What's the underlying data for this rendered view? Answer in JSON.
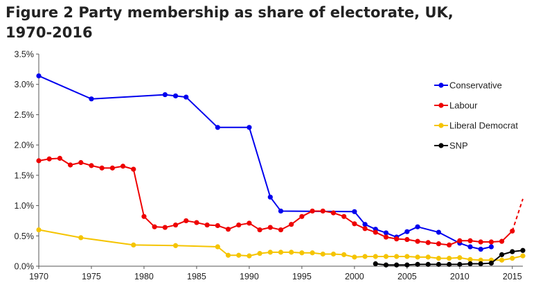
{
  "header": {
    "title_line1": "Figure 2 Party membership as share of electorate, UK,",
    "title_line2": "1970-2016"
  },
  "chart_data": {
    "type": "line",
    "title": "Figure 2 Party membership as share of electorate, UK, 1970-2016",
    "xlabel": "",
    "ylabel": "",
    "xlim": [
      1970,
      2016
    ],
    "ylim": [
      0,
      3.5
    ],
    "x_ticks": [
      1970,
      1975,
      1980,
      1985,
      1990,
      1995,
      2000,
      2005,
      2010,
      2015
    ],
    "y_ticks": [
      0,
      0.5,
      1.0,
      1.5,
      2.0,
      2.5,
      3.0,
      3.5
    ],
    "y_tick_labels": [
      "0.0%",
      "0.5%",
      "1.0%",
      "1.5%",
      "2.0%",
      "2.5%",
      "3.0%",
      "3.5%"
    ],
    "legend_position": "right",
    "grid": false,
    "series": [
      {
        "name": "Conservative",
        "color": "#0000ee",
        "points": [
          [
            1970,
            3.14
          ],
          [
            1975,
            2.76
          ],
          [
            1982,
            2.83
          ],
          [
            1983,
            2.81
          ],
          [
            1984,
            2.79
          ],
          [
            1987,
            2.29
          ],
          [
            1990,
            2.29
          ],
          [
            1992,
            1.14
          ],
          [
            1993,
            0.91
          ],
          [
            2000,
            0.9
          ],
          [
            2001,
            0.69
          ],
          [
            2002,
            0.61
          ],
          [
            2003,
            0.55
          ],
          [
            2004,
            0.48
          ],
          [
            2005,
            0.57
          ],
          [
            2006,
            0.65
          ],
          [
            2008,
            0.56
          ],
          [
            2010,
            0.38
          ],
          [
            2011,
            0.32
          ],
          [
            2012,
            0.28
          ],
          [
            2013,
            0.32
          ]
        ]
      },
      {
        "name": "Labour",
        "color": "#ee0000",
        "points": [
          [
            1970,
            1.74
          ],
          [
            1971,
            1.77
          ],
          [
            1972,
            1.78
          ],
          [
            1973,
            1.67
          ],
          [
            1974,
            1.71
          ],
          [
            1975,
            1.66
          ],
          [
            1976,
            1.62
          ],
          [
            1977,
            1.62
          ],
          [
            1978,
            1.65
          ],
          [
            1979,
            1.6
          ],
          [
            1980,
            0.82
          ],
          [
            1981,
            0.65
          ],
          [
            1982,
            0.64
          ],
          [
            1983,
            0.68
          ],
          [
            1984,
            0.75
          ],
          [
            1985,
            0.72
          ],
          [
            1986,
            0.68
          ],
          [
            1987,
            0.67
          ],
          [
            1988,
            0.61
          ],
          [
            1989,
            0.68
          ],
          [
            1990,
            0.71
          ],
          [
            1991,
            0.6
          ],
          [
            1992,
            0.64
          ],
          [
            1993,
            0.6
          ],
          [
            1994,
            0.69
          ],
          [
            1995,
            0.82
          ],
          [
            1996,
            0.91
          ],
          [
            1997,
            0.91
          ],
          [
            1998,
            0.88
          ],
          [
            1999,
            0.82
          ],
          [
            2000,
            0.7
          ],
          [
            2001,
            0.62
          ],
          [
            2002,
            0.56
          ],
          [
            2003,
            0.48
          ],
          [
            2004,
            0.45
          ],
          [
            2005,
            0.44
          ],
          [
            2006,
            0.41
          ],
          [
            2007,
            0.39
          ],
          [
            2008,
            0.37
          ],
          [
            2009,
            0.35
          ],
          [
            2010,
            0.42
          ],
          [
            2011,
            0.42
          ],
          [
            2012,
            0.4
          ],
          [
            2013,
            0.4
          ],
          [
            2014,
            0.41
          ],
          [
            2015,
            0.58
          ]
        ],
        "dashed_extension": [
          [
            2015,
            0.58
          ],
          [
            2016,
            1.11
          ]
        ]
      },
      {
        "name": "Liberal Democrat",
        "color": "#f5c400",
        "points": [
          [
            1970,
            0.6
          ],
          [
            1974,
            0.47
          ],
          [
            1979,
            0.35
          ],
          [
            1983,
            0.34
          ],
          [
            1987,
            0.32
          ],
          [
            1988,
            0.18
          ],
          [
            1989,
            0.18
          ],
          [
            1990,
            0.17
          ],
          [
            1991,
            0.21
          ],
          [
            1992,
            0.23
          ],
          [
            1993,
            0.23
          ],
          [
            1994,
            0.23
          ],
          [
            1995,
            0.22
          ],
          [
            1996,
            0.22
          ],
          [
            1997,
            0.2
          ],
          [
            1998,
            0.2
          ],
          [
            1999,
            0.19
          ],
          [
            2000,
            0.15
          ],
          [
            2001,
            0.16
          ],
          [
            2002,
            0.16
          ],
          [
            2003,
            0.16
          ],
          [
            2004,
            0.16
          ],
          [
            2005,
            0.16
          ],
          [
            2006,
            0.15
          ],
          [
            2007,
            0.15
          ],
          [
            2008,
            0.13
          ],
          [
            2009,
            0.13
          ],
          [
            2010,
            0.14
          ],
          [
            2011,
            0.11
          ],
          [
            2012,
            0.1
          ],
          [
            2013,
            0.1
          ],
          [
            2014,
            0.1
          ],
          [
            2015,
            0.13
          ],
          [
            2016,
            0.17
          ]
        ]
      },
      {
        "name": "SNP",
        "color": "#000000",
        "points": [
          [
            2002,
            0.04
          ],
          [
            2003,
            0.02
          ],
          [
            2004,
            0.02
          ],
          [
            2005,
            0.02
          ],
          [
            2006,
            0.03
          ],
          [
            2007,
            0.03
          ],
          [
            2008,
            0.03
          ],
          [
            2009,
            0.03
          ],
          [
            2010,
            0.03
          ],
          [
            2011,
            0.04
          ],
          [
            2012,
            0.04
          ],
          [
            2013,
            0.05
          ],
          [
            2014,
            0.19
          ],
          [
            2015,
            0.24
          ],
          [
            2016,
            0.26
          ]
        ]
      }
    ]
  }
}
